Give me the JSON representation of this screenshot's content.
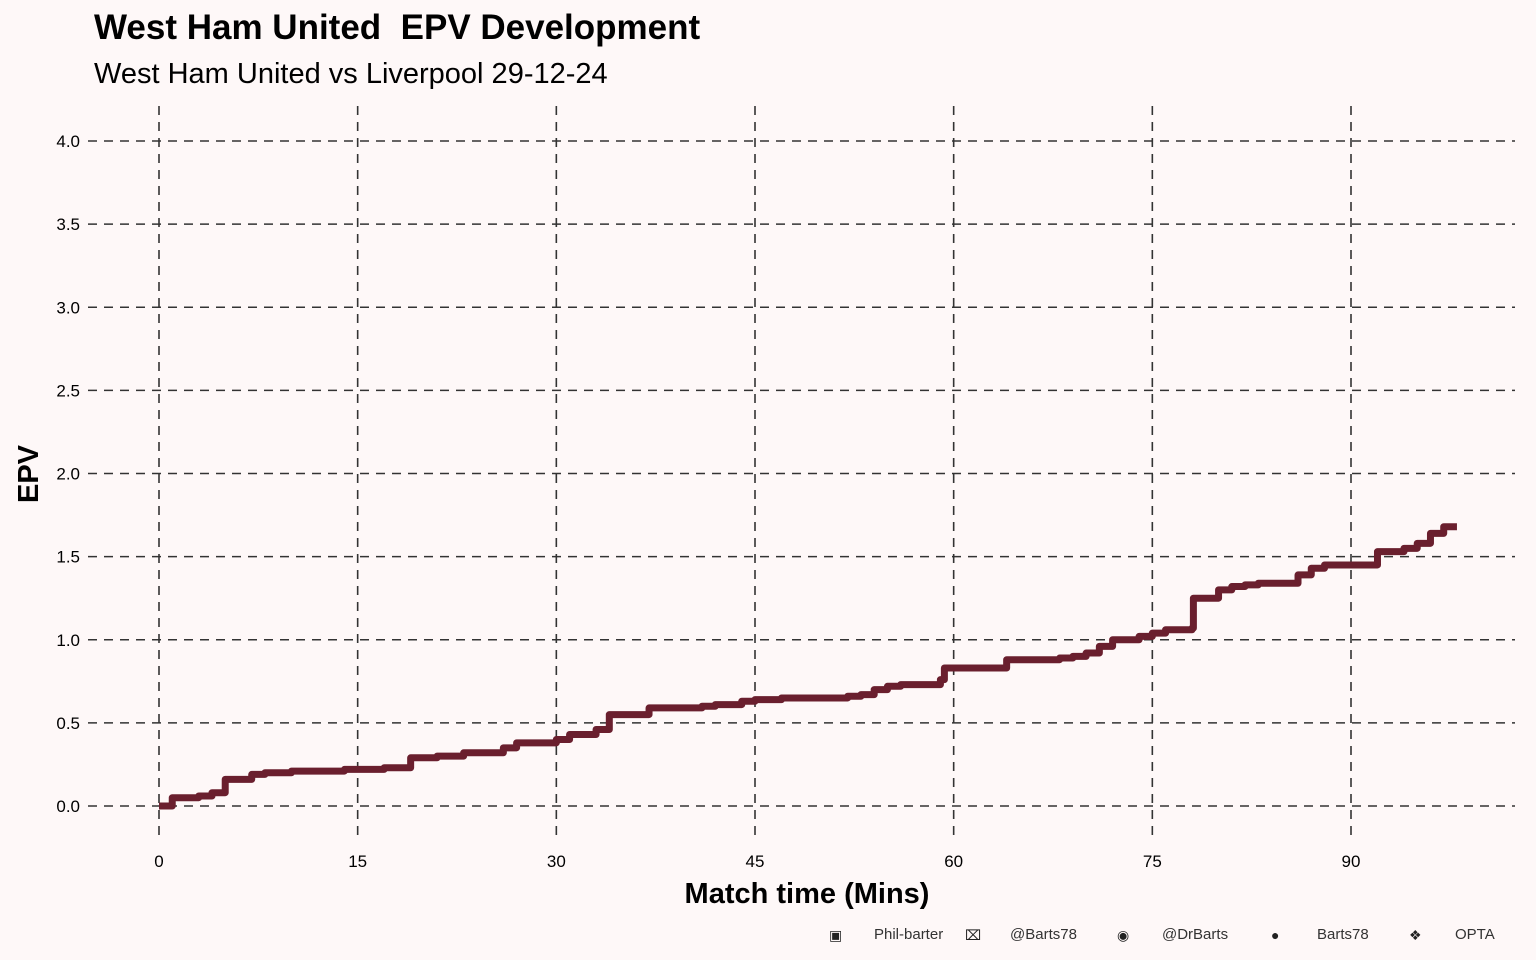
{
  "title": "West Ham United  EPV Development",
  "subtitle": "West Ham United vs Liverpool 29-12-24",
  "chart_data": {
    "type": "line",
    "step": true,
    "xlabel": "Match time (Mins)",
    "ylabel": "EPV",
    "xlim": [
      -5,
      102
    ],
    "ylim": [
      -0.2,
      4.2
    ],
    "xticks": [
      0,
      15,
      30,
      45,
      60,
      75,
      90
    ],
    "yticks": [
      "0.0",
      "0.5",
      "1.0",
      "1.5",
      "2.0",
      "2.5",
      "3.0",
      "3.5",
      "4.0"
    ],
    "grid": true,
    "line_color": "#6a1f2e",
    "series": [
      {
        "name": "West Ham United",
        "x": [
          0,
          1,
          3,
          4,
          5,
          7,
          8,
          10,
          14,
          17,
          19,
          21,
          23,
          26,
          27,
          30,
          31,
          33,
          34,
          37,
          41,
          42,
          44,
          45,
          47,
          52,
          53,
          54,
          55,
          56,
          59,
          59.3,
          64,
          68,
          69,
          70,
          71,
          72,
          74,
          75,
          76,
          78,
          78.1,
          80,
          81,
          82,
          83,
          86,
          87,
          88,
          92,
          94,
          95,
          96,
          97,
          98
        ],
        "y": [
          0,
          0.05,
          0.06,
          0.08,
          0.16,
          0.19,
          0.2,
          0.21,
          0.22,
          0.23,
          0.29,
          0.3,
          0.32,
          0.35,
          0.38,
          0.4,
          0.43,
          0.46,
          0.55,
          0.59,
          0.6,
          0.61,
          0.63,
          0.64,
          0.65,
          0.66,
          0.67,
          0.7,
          0.72,
          0.73,
          0.76,
          0.83,
          0.88,
          0.89,
          0.9,
          0.92,
          0.96,
          1.0,
          1.02,
          1.04,
          1.06,
          1.07,
          1.25,
          1.3,
          1.32,
          1.33,
          1.34,
          1.39,
          1.43,
          1.45,
          1.53,
          1.55,
          1.58,
          1.64,
          1.68,
          1.68
        ]
      }
    ]
  },
  "footer": {
    "linkedin": "Phil-barter",
    "x": "@Barts78",
    "mastodon": "@DrBarts",
    "github": "Barts78",
    "source": "OPTA"
  }
}
